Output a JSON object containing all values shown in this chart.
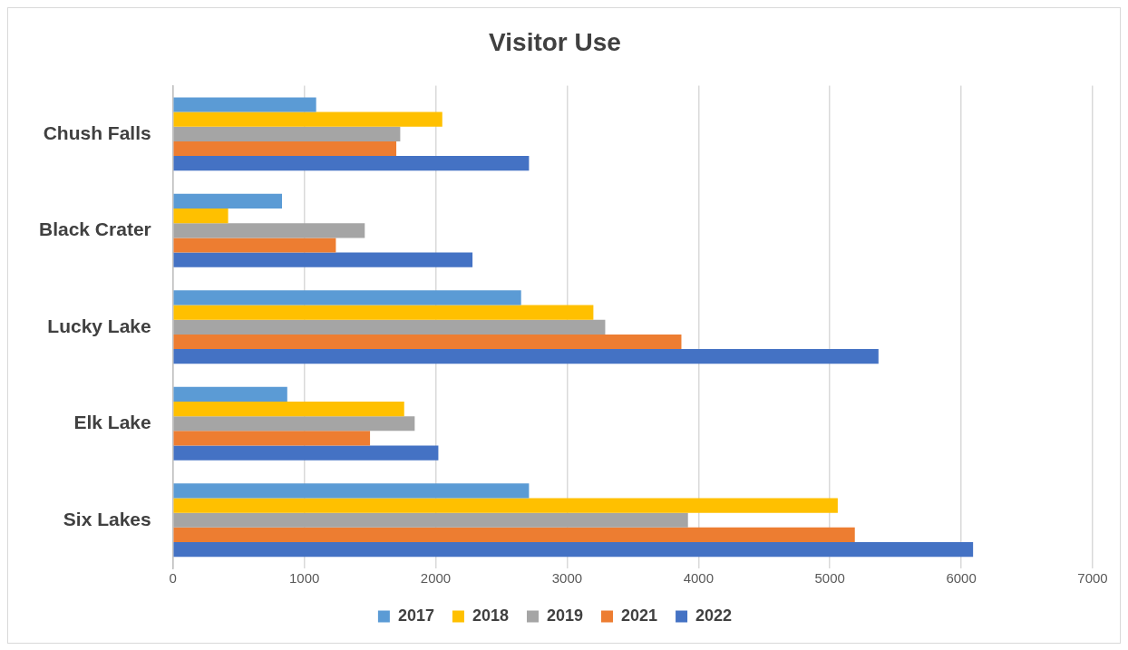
{
  "chart_data": {
    "type": "bar",
    "title": "Visitor Use",
    "orientation": "horizontal",
    "categories": [
      "Chush Falls",
      "Black Crater",
      "Lucky Lake",
      "Elk Lake",
      "Six Lakes"
    ],
    "series": [
      {
        "name": "2017",
        "color": "#5b9bd5",
        "values": [
          1090,
          830,
          2650,
          870,
          2710
        ]
      },
      {
        "name": "2018",
        "color": "#ffc000",
        "values": [
          2050,
          420,
          3200,
          1760,
          5060
        ]
      },
      {
        "name": "2019",
        "color": "#a5a5a5",
        "values": [
          1730,
          1460,
          3290,
          1840,
          3920
        ]
      },
      {
        "name": "2021",
        "color": "#ed7d31",
        "values": [
          1700,
          1240,
          3870,
          1500,
          5190
        ]
      },
      {
        "name": "2022",
        "color": "#4472c4",
        "values": [
          2710,
          2280,
          5370,
          2020,
          6090
        ]
      }
    ],
    "xlim": [
      0,
      7000
    ],
    "xticks": [
      0,
      1000,
      2000,
      3000,
      4000,
      5000,
      6000,
      7000
    ],
    "grid": "x",
    "legend": "bottom"
  }
}
